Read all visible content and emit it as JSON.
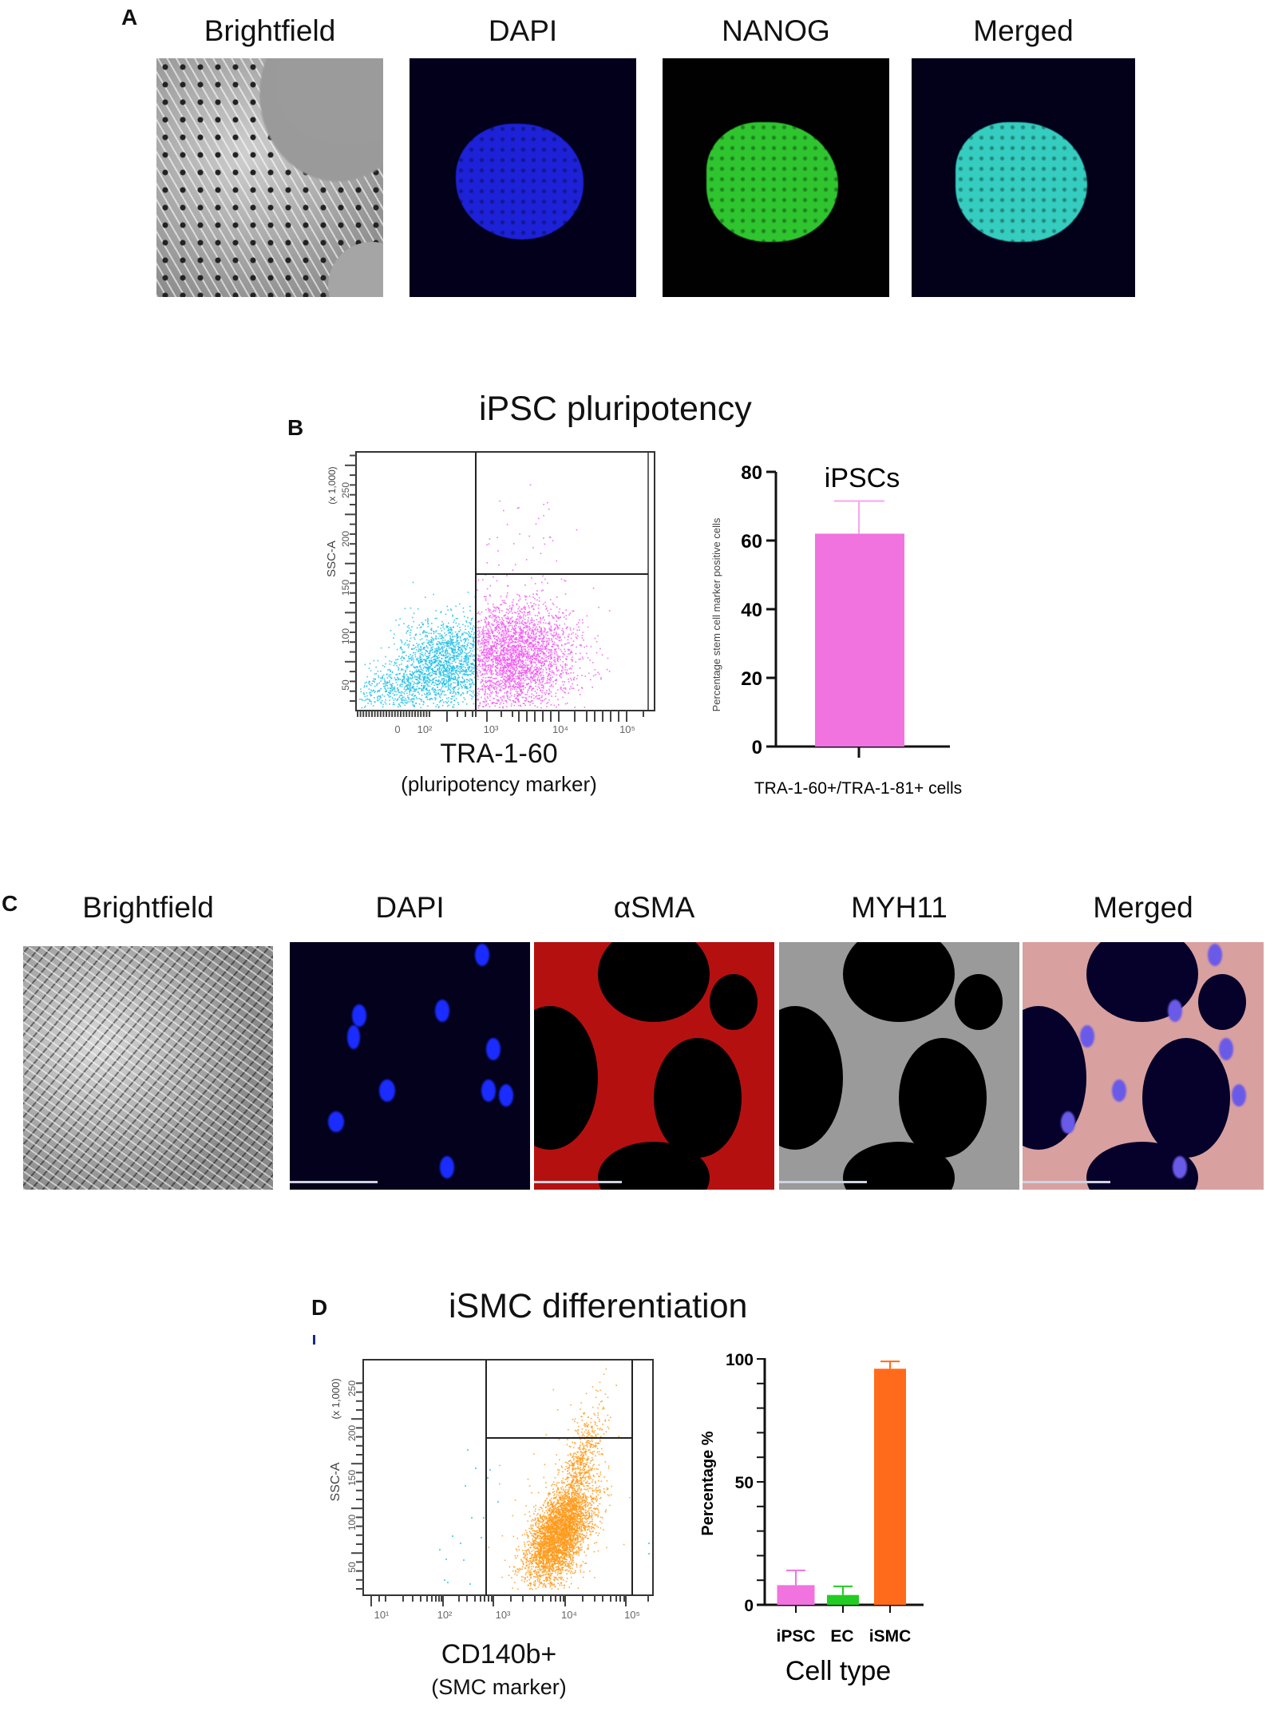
{
  "panels": {
    "A": {
      "label": "A",
      "columns": [
        "Brightfield",
        "DAPI",
        "NANOG",
        "Merged"
      ]
    },
    "B": {
      "label": "B",
      "title": "iPSC pluripotency",
      "flow": {
        "y_axis_label": "SSC-A",
        "y_axis_unit": "(x 1,000)",
        "y_ticks": [
          "50",
          "100",
          "150",
          "200",
          "250"
        ],
        "x_ticks": [
          "0",
          "10²",
          "10³",
          "10⁴",
          "10⁵"
        ],
        "x_label": "TRA-1-60",
        "x_sublabel": "(pluripotency marker)"
      },
      "bar": {
        "title": "iPSCs",
        "y_label": "Percentage stem cell marker positive cells",
        "x_label": "TRA-1-60+/TRA-1-81+ cells",
        "y_ticks": [
          "0",
          "20",
          "40",
          "60",
          "80"
        ]
      }
    },
    "C": {
      "label": "C",
      "columns": [
        "Brightfield",
        "DAPI",
        "αSMA",
        "MYH11",
        "Merged"
      ]
    },
    "D": {
      "label": "D",
      "title": "iSMC differentiation",
      "flow": {
        "y_axis_label": "SSC-A",
        "y_axis_unit": "(x 1,000)",
        "y_ticks": [
          "50",
          "100",
          "150",
          "200",
          "250"
        ],
        "x_ticks": [
          "10¹",
          "10²",
          "10³",
          "10⁴",
          "10⁵"
        ],
        "x_label": "CD140b+",
        "x_sublabel": "(SMC marker)"
      },
      "bar": {
        "y_label": "Percentage %",
        "x_label": "Cell type",
        "y_ticks": [
          "0",
          "50",
          "100"
        ],
        "categories": [
          "iPSC",
          "EC",
          "iSMC"
        ]
      }
    }
  },
  "colors": {
    "cyan_events": "#22bfe6",
    "magenta_events": "#f05cf0",
    "orange_events": "#ff9a1a",
    "ipsc_bar": "#f073e0",
    "ec_bar": "#22cc22",
    "ismc_bar": "#ff6b1a",
    "dapi": "#1a2cff",
    "nanog": "#2fd12f",
    "merged_A": "#35d6c8",
    "asma": "#d81010"
  },
  "chart_data": [
    {
      "id": "B-flow",
      "type": "scatter",
      "title": "iPSC pluripotency",
      "xlabel": "TRA-1-60 (pluripotency marker)",
      "ylabel": "SSC-A (x 1,000)",
      "x_scale": "log",
      "x_ticks": [
        "0",
        "10^2",
        "10^3",
        "10^4",
        "10^5"
      ],
      "y_ticks": [
        50,
        100,
        150,
        200,
        250
      ],
      "ylim": [
        0,
        260
      ],
      "gates": {
        "vertical_x": "~7x10^2",
        "horizontal_y": 140
      },
      "series": [
        {
          "name": "TRA-1-60 negative",
          "color": "#22bfe6",
          "region": "x < gate, SSC ~10-90 (dense 20-60)"
        },
        {
          "name": "TRA-1-60 positive",
          "color": "#f05cf0",
          "region": "x 7x10^2-5x10^3, SSC ~15-140 (dense 30-80)"
        }
      ]
    },
    {
      "id": "B-bar",
      "type": "bar",
      "title": "iPSCs",
      "categories": [
        "TRA-1-60+/TRA-1-81+ cells"
      ],
      "values": [
        62
      ],
      "error_upper": [
        71.5
      ],
      "xlabel": "TRA-1-60+/TRA-1-81+ cells",
      "ylabel": "Percentage stem cell marker positive cells",
      "ylim": [
        0,
        80
      ],
      "y_ticks": [
        0,
        20,
        40,
        60,
        80
      ],
      "color": "#f073e0"
    },
    {
      "id": "D-flow",
      "type": "scatter",
      "title": "iSMC differentiation",
      "xlabel": "CD140b+ (SMC marker)",
      "ylabel": "SSC-A (x 1,000)",
      "x_scale": "log",
      "x_ticks": [
        "10^1",
        "10^2",
        "10^3",
        "10^4",
        "10^5"
      ],
      "y_ticks": [
        50,
        100,
        150,
        200,
        250
      ],
      "ylim": [
        0,
        260
      ],
      "gates": {
        "vertical_x": "~7x10^2",
        "vertical_x2": "~1.3x10^5",
        "horizontal_y": 175
      },
      "series": [
        {
          "name": "CD140b negative",
          "color": "#22bfe6",
          "region": "sparse, x 5x10^1-7x10^2, SSC 40-230"
        },
        {
          "name": "CD140b positive",
          "color": "#ff9a1a",
          "region": "x 3x10^3-2x10^4, SSC 50-250 (dense 55-130)"
        }
      ]
    },
    {
      "id": "D-bar",
      "type": "bar",
      "categories": [
        "iPSC",
        "EC",
        "iSMC"
      ],
      "values": [
        8,
        4,
        96
      ],
      "error_upper": [
        14,
        7.5,
        99
      ],
      "xlabel": "Cell type",
      "ylabel": "Percentage %",
      "ylim": [
        0,
        100
      ],
      "y_ticks": [
        0,
        50,
        100
      ],
      "colors": [
        "#f073e0",
        "#22cc22",
        "#ff6b1a"
      ]
    }
  ]
}
